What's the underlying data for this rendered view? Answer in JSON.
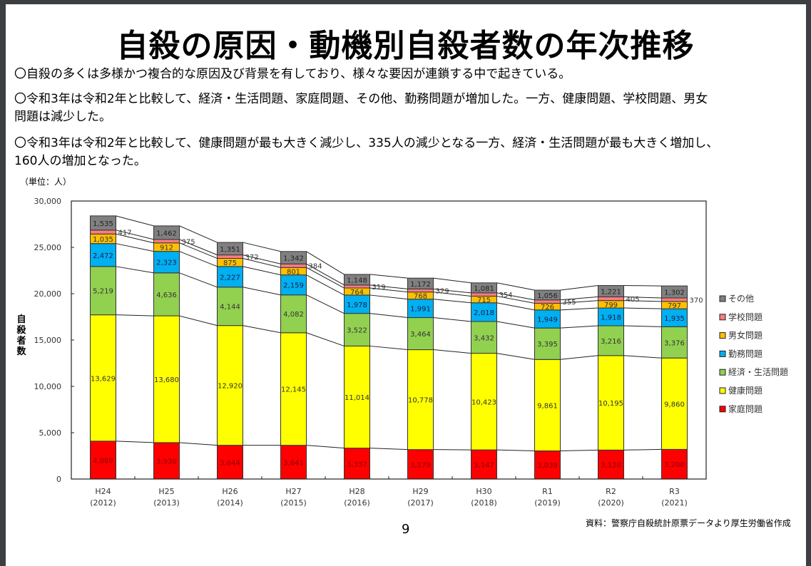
{
  "page": {
    "title": "自殺の原因・動機別自殺者数の年次推移",
    "bullets": [
      "〇自殺の多くは多様かつ複合的な原因及び背景を有しており、様々な要因が連鎖する中で起きている。",
      "〇令和3年は令和2年と比較して、経済・生活問題、家庭問題、その他、勤務問題が増加した。一方、健康問題、学校問題、男女",
      "問題は減少した。",
      "〇令和3年は令和2年と比較して、健康問題が最も大きく減少し、335人の減少となる一方、経済・生活問題が最も大きく増加し、",
      "160人の増加となった。"
    ],
    "unit_label": "（単位：人）",
    "source": "資料：警察庁自殺統計原票データより厚生労働省作成",
    "page_number": "9"
  },
  "chart_data": {
    "type": "bar",
    "stacked": true,
    "title": "自殺の原因・動機別自殺者数の年次推移",
    "xlabel": "",
    "ylabel": "自殺者数",
    "ylabel_chars": [
      "自",
      "殺",
      "者",
      "数"
    ],
    "ylim": [
      0,
      30000
    ],
    "yticks": [
      0,
      5000,
      10000,
      15000,
      20000,
      25000,
      30000
    ],
    "ytick_labels": [
      "0",
      "5,000",
      "10,000",
      "15,000",
      "20,000",
      "25,000",
      "30,000"
    ],
    "grid": false,
    "legend_position": "right",
    "categories": [
      "H24",
      "H25",
      "H26",
      "H27",
      "H28",
      "H29",
      "H30",
      "R1",
      "R2",
      "R3"
    ],
    "category_years": [
      "(2012)",
      "(2013)",
      "(2014)",
      "(2015)",
      "(2016)",
      "(2017)",
      "(2018)",
      "(2019)",
      "(2020)",
      "(2021)"
    ],
    "series": [
      {
        "name": "家庭問題",
        "color": "#ff0000",
        "label_color": "#8b0000",
        "values": [
          4089,
          3930,
          3644,
          3641,
          3337,
          3179,
          3147,
          3039,
          3128,
          3200
        ],
        "labels": [
          "4,089",
          "3,930",
          "3,644",
          "3,641",
          "3,337",
          "3,179",
          "3,147",
          "3,039",
          "3,128",
          "3,200"
        ]
      },
      {
        "name": "健康問題",
        "color": "#ffff00",
        "label_color": "#333333",
        "values": [
          13629,
          13680,
          12920,
          12145,
          11014,
          10778,
          10423,
          9861,
          10195,
          9860
        ],
        "labels": [
          "13,629",
          "13,680",
          "12,920",
          "12,145",
          "11,014",
          "10,778",
          "10,423",
          "9,861",
          "10,195",
          "9,860"
        ]
      },
      {
        "name": "経済・生活問題",
        "color": "#92d050",
        "label_color": "#333333",
        "values": [
          5219,
          4636,
          4144,
          4082,
          3522,
          3464,
          3432,
          3395,
          3216,
          3376
        ],
        "labels": [
          "5,219",
          "4,636",
          "4,144",
          "4,082",
          "3,522",
          "3,464",
          "3,432",
          "3,395",
          "3,216",
          "3,376"
        ]
      },
      {
        "name": "勤務問題",
        "color": "#00b0f0",
        "label_color": "#1a1a4d",
        "values": [
          2472,
          2323,
          2227,
          2159,
          1978,
          1991,
          2018,
          1949,
          1918,
          1935
        ],
        "labels": [
          "2,472",
          "2,323",
          "2,227",
          "2,159",
          "1,978",
          "1,991",
          "2,018",
          "1,949",
          "1,918",
          "1,935"
        ]
      },
      {
        "name": "男女問題",
        "color": "#ffc000",
        "label_color": "#333333",
        "values": [
          1035,
          912,
          875,
          801,
          764,
          768,
          715,
          726,
          799,
          797
        ],
        "labels": [
          "1,035",
          "912",
          "875",
          "801",
          "764",
          "768",
          "715",
          "726",
          "799",
          "797"
        ]
      },
      {
        "name": "学校問題",
        "color": "#ff7c80",
        "label_color": "#333333",
        "values": [
          417,
          375,
          372,
          384,
          319,
          329,
          354,
          355,
          405,
          370
        ],
        "labels": [
          "417",
          "375",
          "372",
          "384",
          "319",
          "329",
          "354",
          "355",
          "405",
          "370"
        ],
        "label_outside": true
      },
      {
        "name": "その他",
        "color": "#808080",
        "label_color": "#222222",
        "values": [
          1535,
          1462,
          1351,
          1342,
          1148,
          1172,
          1081,
          1056,
          1221,
          1302
        ],
        "labels": [
          "1,535",
          "1,462",
          "1,351",
          "1,342",
          "1,148",
          "1,172",
          "1,081",
          "1,056",
          "1,221",
          "1,302"
        ]
      }
    ],
    "legend_order": [
      "その他",
      "学校問題",
      "男女問題",
      "勤務問題",
      "経済・生活問題",
      "健康問題",
      "家庭問題"
    ]
  }
}
